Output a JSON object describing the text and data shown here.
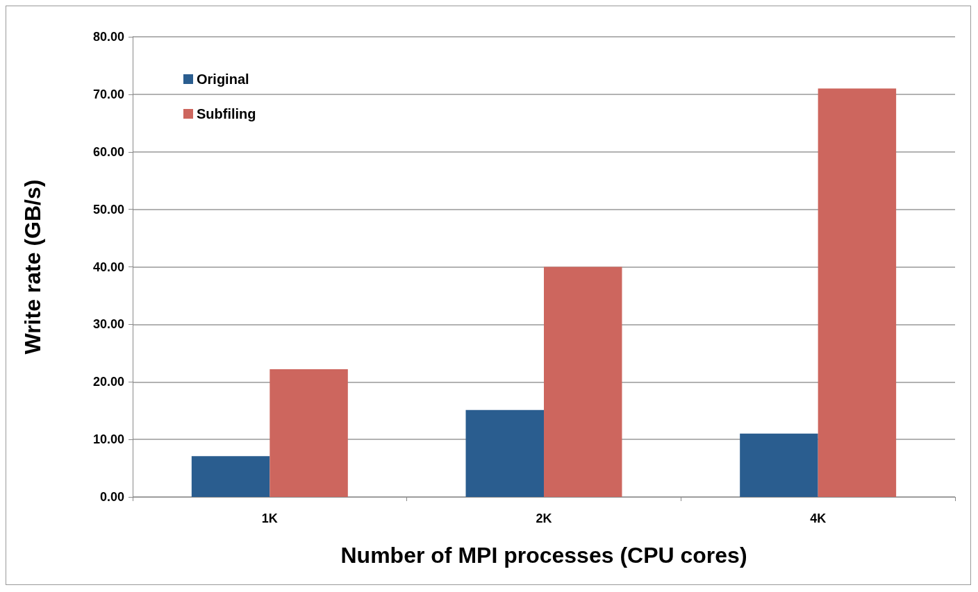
{
  "chart_data": {
    "type": "bar",
    "xlabel": "Number of MPI processes (CPU cores)",
    "ylabel": "Write rate (GB/s)",
    "categories": [
      "1K",
      "2K",
      "4K"
    ],
    "series": [
      {
        "name": "Original",
        "color": "#2a5d8f",
        "values": [
          7.1,
          15.1,
          11.0
        ]
      },
      {
        "name": "Subfiling",
        "color": "#cd665e",
        "values": [
          22.2,
          40.0,
          71.0
        ]
      }
    ],
    "ylim": [
      0,
      80
    ],
    "yticks": [
      {
        "value": 0,
        "label": "0.00"
      },
      {
        "value": 10,
        "label": "10.00"
      },
      {
        "value": 20,
        "label": "20.00"
      },
      {
        "value": 30,
        "label": "30.00"
      },
      {
        "value": 40,
        "label": "40.00"
      },
      {
        "value": 50,
        "label": "50.00"
      },
      {
        "value": 60,
        "label": "60.00"
      },
      {
        "value": 70,
        "label": "70.00"
      },
      {
        "value": 80,
        "label": "80.00"
      }
    ],
    "grid": "y",
    "legend": "top left"
  }
}
